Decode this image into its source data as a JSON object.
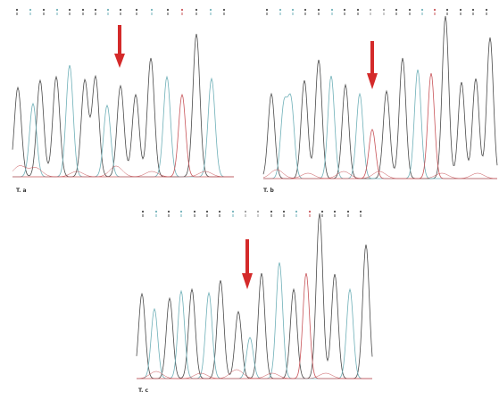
{
  "panels": [
    {
      "id": "a",
      "label": "T. a",
      "baseline_peaks": [
        {
          "trace": "black",
          "pos": 10
        },
        {
          "trace": "blue",
          "pos": 15
        },
        {
          "trace": "blue",
          "pos": 22
        },
        {
          "trace": "blue",
          "pos": 30
        },
        {
          "trace": "black",
          "pos": 38
        },
        {
          "trace": "black",
          "pos": 47
        },
        {
          "trace": "black",
          "pos": 55
        },
        {
          "trace": "black",
          "pos": 64
        },
        {
          "trace": "black",
          "pos": 72
        },
        {
          "trace": "blue",
          "pos": 82
        },
        {
          "trace": "blue",
          "pos": 90
        },
        {
          "trace": "red",
          "pos": 100
        },
        {
          "trace": "black",
          "pos": 110
        },
        {
          "trace": "blue",
          "pos": 118
        }
      ],
      "colors": {
        "black": "#4a4a4a",
        "blue": "#6fb0b8",
        "red": "#c8555a",
        "arrow": "#d42a2a"
      }
    },
    {
      "id": "b",
      "label": "T. b",
      "colors": {
        "black": "#4a4a4a",
        "blue": "#6fb0b8",
        "red": "#c8555a",
        "arrow": "#d42a2a"
      }
    },
    {
      "id": "c",
      "label": "T. c",
      "colors": {
        "black": "#4a4a4a",
        "blue": "#6fb0b8",
        "red": "#c8555a",
        "arrow": "#d42a2a"
      }
    }
  ]
}
